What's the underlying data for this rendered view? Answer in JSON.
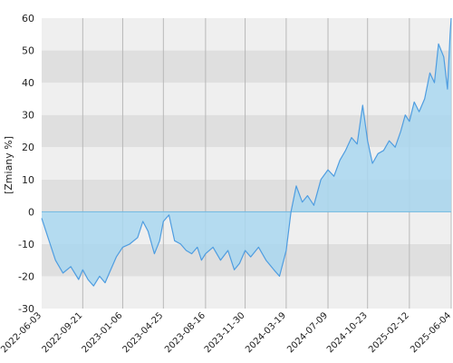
{
  "chart_data": {
    "type": "area",
    "ylabel": "[Zmiany %]",
    "ylim": [
      -30,
      60
    ],
    "yticks": [
      -30,
      -20,
      -10,
      0,
      10,
      20,
      30,
      40,
      50,
      60
    ],
    "xtick_labels": [
      "2022-06-03",
      "2022-09-21",
      "2023-01-06",
      "2023-04-25",
      "2023-08-16",
      "2023-11-30",
      "2024-03-19",
      "2024-07-09",
      "2024-10-23",
      "2025-02-12",
      "2025-06-04"
    ],
    "x_range": [
      "2022-06-03",
      "2025-06-04"
    ],
    "grid": "horizontal alternating bands and vertical lines",
    "colors": {
      "line": "#4f9de0",
      "fill": "#a9d7f0",
      "band_light": "#efefef",
      "band_dark": "#dfdfdf",
      "zero_line": "#6fb8e0"
    },
    "series": [
      {
        "x": [
          "2022-06-03",
          "2022-06-20",
          "2022-07-10",
          "2022-07-30",
          "2022-08-20",
          "2022-09-10",
          "2022-09-21",
          "2022-10-05",
          "2022-10-20",
          "2022-11-05",
          "2022-11-20",
          "2022-12-05",
          "2022-12-20",
          "2023-01-06",
          "2023-01-25",
          "2023-02-15",
          "2023-03-01",
          "2023-03-15",
          "2023-04-01",
          "2023-04-15",
          "2023-04-25",
          "2023-05-10",
          "2023-05-25",
          "2023-06-10",
          "2023-06-25",
          "2023-07-10",
          "2023-07-25",
          "2023-08-05",
          "2023-08-16",
          "2023-09-05",
          "2023-09-25",
          "2023-10-15",
          "2023-11-01",
          "2023-11-15",
          "2023-11-30",
          "2023-12-15",
          "2024-01-05",
          "2024-01-25",
          "2024-02-15",
          "2024-03-01",
          "2024-03-19",
          "2024-04-01",
          "2024-04-15",
          "2024-05-01",
          "2024-05-15",
          "2024-06-01",
          "2024-06-20",
          "2024-07-09",
          "2024-07-25",
          "2024-08-10",
          "2024-08-25",
          "2024-09-10",
          "2024-09-25",
          "2024-10-10",
          "2024-10-23",
          "2024-11-05",
          "2024-11-20",
          "2024-12-05",
          "2024-12-20",
          "2025-01-05",
          "2025-01-20",
          "2025-02-01",
          "2025-02-12",
          "2025-02-25",
          "2025-03-10",
          "2025-03-25",
          "2025-04-08",
          "2025-04-20",
          "2025-05-01",
          "2025-05-15",
          "2025-05-25",
          "2025-06-01",
          "2025-06-04"
        ],
        "values": [
          -2,
          -8,
          -15,
          -19,
          -17,
          -21,
          -18,
          -21,
          -23,
          -20,
          -22,
          -18,
          -14,
          -11,
          -10,
          -8,
          -3,
          -6,
          -13,
          -9,
          -3,
          -1,
          -9,
          -10,
          -12,
          -13,
          -11,
          -15,
          -13,
          -11,
          -15,
          -12,
          -18,
          -16,
          -12,
          -14,
          -11,
          -15,
          -18,
          -20,
          -12,
          0,
          8,
          3,
          5,
          2,
          10,
          13,
          11,
          16,
          19,
          23,
          21,
          33,
          22,
          15,
          18,
          19,
          22,
          20,
          25,
          30,
          28,
          34,
          31,
          35,
          43,
          40,
          52,
          48,
          38,
          55,
          60
        ]
      }
    ]
  }
}
